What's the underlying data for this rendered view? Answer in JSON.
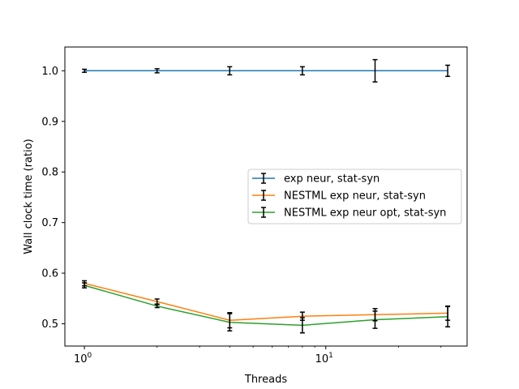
{
  "chart_data": {
    "type": "line",
    "title": "",
    "xlabel": "Threads",
    "ylabel": "Wall clock time (ratio)",
    "xscale": "log",
    "xlim": [
      0.83,
      38.5
    ],
    "ylim": [
      0.456,
      1.047
    ],
    "x": [
      1,
      2,
      4,
      8,
      16,
      32
    ],
    "x_tick_labels": [
      {
        "value": 1,
        "base": "10",
        "exp": "0"
      },
      {
        "value": 10,
        "base": "10",
        "exp": "1"
      }
    ],
    "y_ticks": [
      "0.5",
      "0.6",
      "0.7",
      "0.8",
      "0.9",
      "1.0"
    ],
    "grid": false,
    "legend_position": "center-right",
    "series": [
      {
        "name": "exp neur, stat-syn",
        "color": "#1f77b4",
        "values": [
          1.0,
          1.0,
          1.0,
          1.0,
          1.0,
          1.0
        ],
        "errors": [
          0.003,
          0.004,
          0.008,
          0.008,
          0.022,
          0.011
        ]
      },
      {
        "name": "NESTML exp neur, stat-syn",
        "color": "#ff7f0e",
        "values": [
          0.58,
          0.544,
          0.507,
          0.515,
          0.518,
          0.521
        ],
        "errors": [
          0.005,
          0.005,
          0.015,
          0.008,
          0.012,
          0.014
        ]
      },
      {
        "name": "NESTML exp neur opt, stat-syn",
        "color": "#2ca02c",
        "values": [
          0.576,
          0.535,
          0.503,
          0.497,
          0.508,
          0.514
        ],
        "errors": [
          0.005,
          0.003,
          0.017,
          0.015,
          0.017,
          0.02
        ]
      }
    ],
    "errorbar_color": "#000000"
  }
}
